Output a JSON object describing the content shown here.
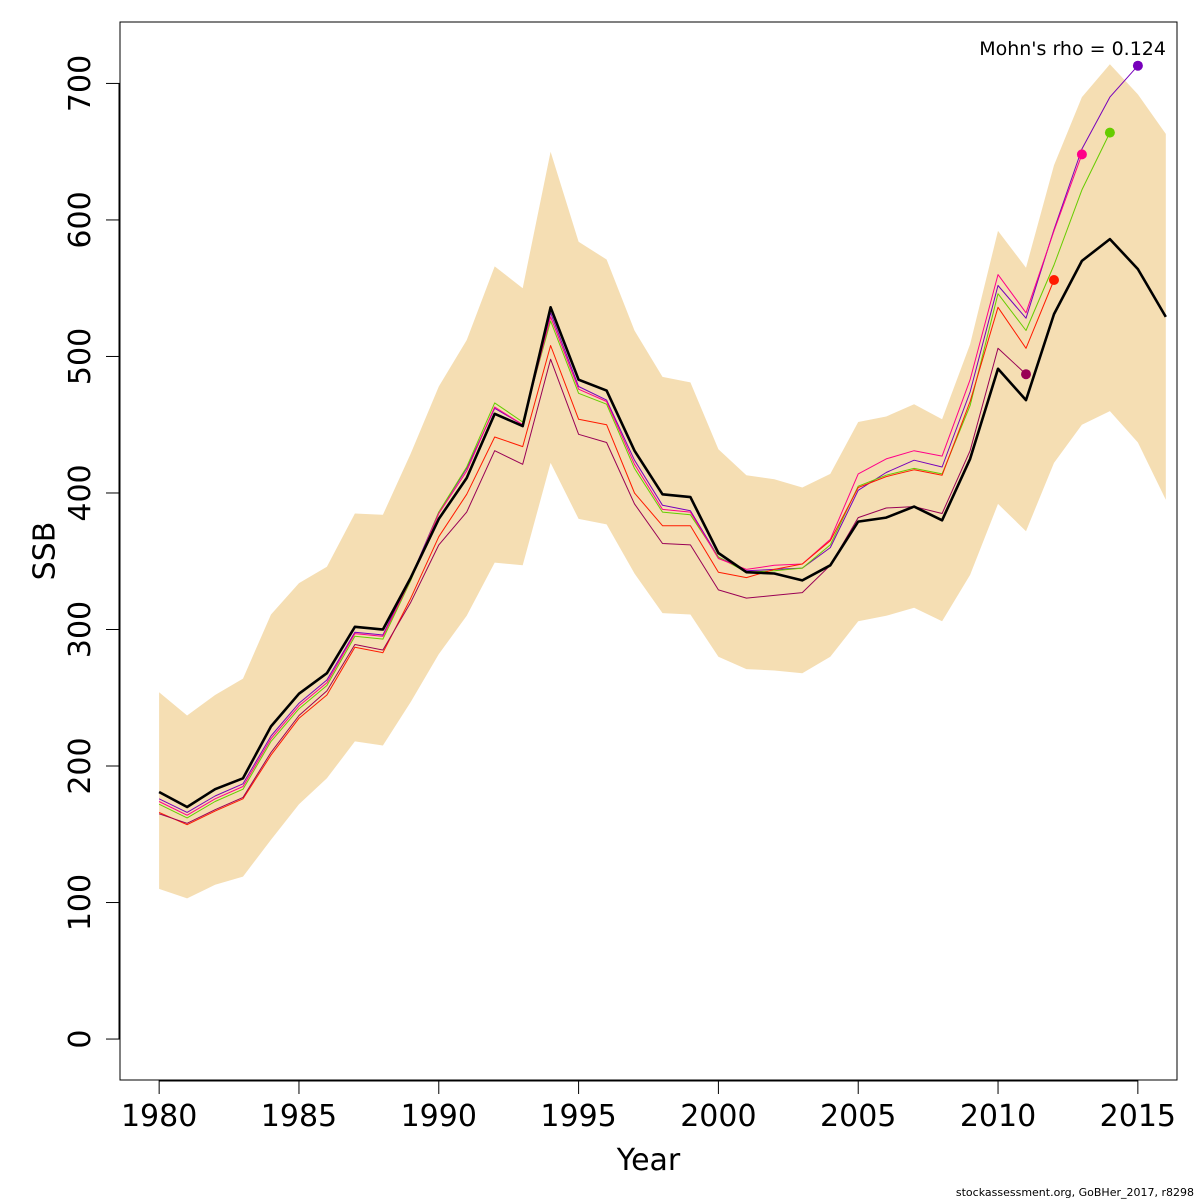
{
  "chart_data": {
    "type": "line",
    "xlabel": "Year",
    "ylabel": "SSB",
    "xlim": [
      1978.6,
      1980.0
    ],
    "x_ticks": [
      1980,
      1985,
      1990,
      1995,
      2000,
      2005,
      2010,
      2015
    ],
    "x_tick_labels": [
      "1980",
      "1985",
      "1990",
      "1995",
      "2000",
      "2005",
      "2010",
      "2015"
    ],
    "ylim": [
      -30,
      745
    ],
    "y_ticks": [
      0,
      100,
      200,
      300,
      400,
      500,
      600,
      700
    ],
    "y_tick_labels": [
      "0",
      "100",
      "200",
      "300",
      "400",
      "500",
      "600",
      "700"
    ],
    "annotation": "Mohn's rho = 0.124",
    "footer": "stockassessment.org, GoBHer_2017, r8298",
    "band_color": "#f5deb3",
    "ci_band": {
      "x": [
        1980,
        1981,
        1982,
        1983,
        1984,
        1985,
        1986,
        1987,
        1988,
        1989,
        1990,
        1991,
        1992,
        1993,
        1994,
        1995,
        1996,
        1997,
        1998,
        1999,
        2000,
        2001,
        2002,
        2003,
        2004,
        2005,
        2006,
        2007,
        2008,
        2009,
        2010,
        2011,
        2012,
        2013,
        2014,
        2015,
        2016
      ],
      "lower": [
        110,
        103,
        113,
        119,
        146,
        172,
        191,
        218,
        215,
        247,
        282,
        310,
        349,
        347,
        422,
        381,
        377,
        341,
        312,
        311,
        280,
        271,
        270,
        268,
        280,
        306,
        310,
        316,
        306,
        340,
        392,
        372,
        422,
        450,
        460,
        437,
        395
      ],
      "upper": [
        254,
        237,
        252,
        264,
        311,
        334,
        346,
        385,
        384,
        429,
        478,
        512,
        566,
        550,
        650,
        584,
        571,
        519,
        485,
        481,
        432,
        413,
        410,
        404,
        414,
        452,
        456,
        465,
        454,
        509,
        592,
        565,
        640,
        690,
        714,
        692,
        663
      ]
    },
    "series": [
      {
        "color": "#000000",
        "width": 2.6,
        "x": [
          1980,
          1981,
          1982,
          1983,
          1984,
          1985,
          1986,
          1987,
          1988,
          1989,
          1990,
          1991,
          1992,
          1993,
          1994,
          1995,
          1996,
          1997,
          1998,
          1999,
          2000,
          2001,
          2002,
          2003,
          2004,
          2005,
          2006,
          2007,
          2008,
          2009,
          2010,
          2011,
          2012,
          2013,
          2014,
          2015,
          2016
        ],
        "values": [
          181,
          170,
          183,
          191,
          229,
          253,
          268,
          302,
          300,
          338,
          381,
          411,
          458,
          449,
          536,
          483,
          475,
          431,
          399,
          397,
          356,
          342,
          341,
          336,
          347,
          379,
          382,
          390,
          380,
          425,
          491,
          468,
          531,
          570,
          586,
          564,
          529
        ]
      },
      {
        "color": "#7700bb",
        "width": 1,
        "x": [
          1980,
          1981,
          1982,
          1983,
          1984,
          1985,
          1986,
          1987,
          1988,
          1989,
          1990,
          1991,
          1992,
          1993,
          1994,
          1995,
          1996,
          1997,
          1998,
          1999,
          2000,
          2001,
          2002,
          2003,
          2004,
          2005,
          2006,
          2007,
          2008,
          2009,
          2010,
          2011,
          2012,
          2013,
          2014,
          2015
        ],
        "values": [
          176,
          166,
          178,
          187,
          222,
          246,
          263,
          298,
          296,
          338,
          386,
          418,
          462,
          450,
          532,
          478,
          468,
          424,
          391,
          387,
          353,
          343,
          344,
          345,
          360,
          402,
          415,
          424,
          419,
          474,
          552,
          528,
          593,
          652,
          690,
          713
        ],
        "end_point": true
      },
      {
        "color": "#66cc00",
        "width": 1,
        "x": [
          1980,
          1981,
          1982,
          1983,
          1984,
          1985,
          1986,
          1987,
          1988,
          1989,
          1990,
          1991,
          1992,
          1993,
          1994,
          1995,
          1996,
          1997,
          1998,
          1999,
          2000,
          2001,
          2002,
          2003,
          2004,
          2005,
          2006,
          2007,
          2008,
          2009,
          2010,
          2011,
          2012,
          2013,
          2014
        ],
        "values": [
          172,
          162,
          174,
          183,
          218,
          242,
          259,
          295,
          293,
          336,
          386,
          419,
          466,
          452,
          526,
          473,
          465,
          418,
          386,
          384,
          353,
          342,
          343,
          345,
          362,
          405,
          413,
          418,
          414,
          464,
          546,
          519,
          567,
          622,
          664
        ],
        "end_point": true
      },
      {
        "color": "#ff0088",
        "width": 1,
        "x": [
          1980,
          1981,
          1982,
          1983,
          1984,
          1985,
          1986,
          1987,
          1988,
          1989,
          1990,
          1991,
          1992,
          1993,
          1994,
          1995,
          1996,
          1997,
          1998,
          1999,
          2000,
          2001,
          2002,
          2003,
          2004,
          2005,
          2006,
          2007,
          2008,
          2009,
          2010,
          2011,
          2012,
          2013
        ],
        "values": [
          174,
          164,
          176,
          185,
          220,
          244,
          261,
          297,
          295,
          337,
          385,
          416,
          463,
          450,
          529,
          476,
          467,
          421,
          388,
          386,
          352,
          344,
          347,
          348,
          366,
          414,
          425,
          431,
          427,
          483,
          560,
          532,
          592,
          648
        ],
        "end_point": true
      },
      {
        "color": "#ff1a00",
        "width": 1,
        "x": [
          1980,
          1981,
          1982,
          1983,
          1984,
          1985,
          1986,
          1987,
          1988,
          1989,
          1990,
          1991,
          1992,
          1993,
          1994,
          1995,
          1996,
          1997,
          1998,
          1999,
          2000,
          2001,
          2002,
          2003,
          2004,
          2005,
          2006,
          2007,
          2008,
          2009,
          2010,
          2011,
          2012
        ],
        "values": [
          166,
          157,
          167,
          176,
          208,
          235,
          252,
          287,
          283,
          323,
          368,
          399,
          441,
          434,
          508,
          454,
          450,
          400,
          376,
          376,
          342,
          338,
          344,
          348,
          365,
          404,
          412,
          417,
          413,
          467,
          536,
          506,
          556
        ],
        "end_point": true
      },
      {
        "color": "#990055",
        "width": 1,
        "x": [
          1980,
          1981,
          1982,
          1983,
          1984,
          1985,
          1986,
          1987,
          1988,
          1989,
          1990,
          1991,
          1992,
          1993,
          1994,
          1995,
          1996,
          1997,
          1998,
          1999,
          2000,
          2001,
          2002,
          2003,
          2004,
          2005,
          2006,
          2007,
          2008,
          2009,
          2010,
          2011
        ],
        "values": [
          165,
          158,
          168,
          177,
          210,
          237,
          255,
          289,
          285,
          320,
          362,
          386,
          431,
          421,
          498,
          443,
          437,
          392,
          363,
          362,
          329,
          323,
          325,
          327,
          347,
          382,
          389,
          390,
          385,
          431,
          506,
          487
        ],
        "end_point": true
      }
    ]
  }
}
